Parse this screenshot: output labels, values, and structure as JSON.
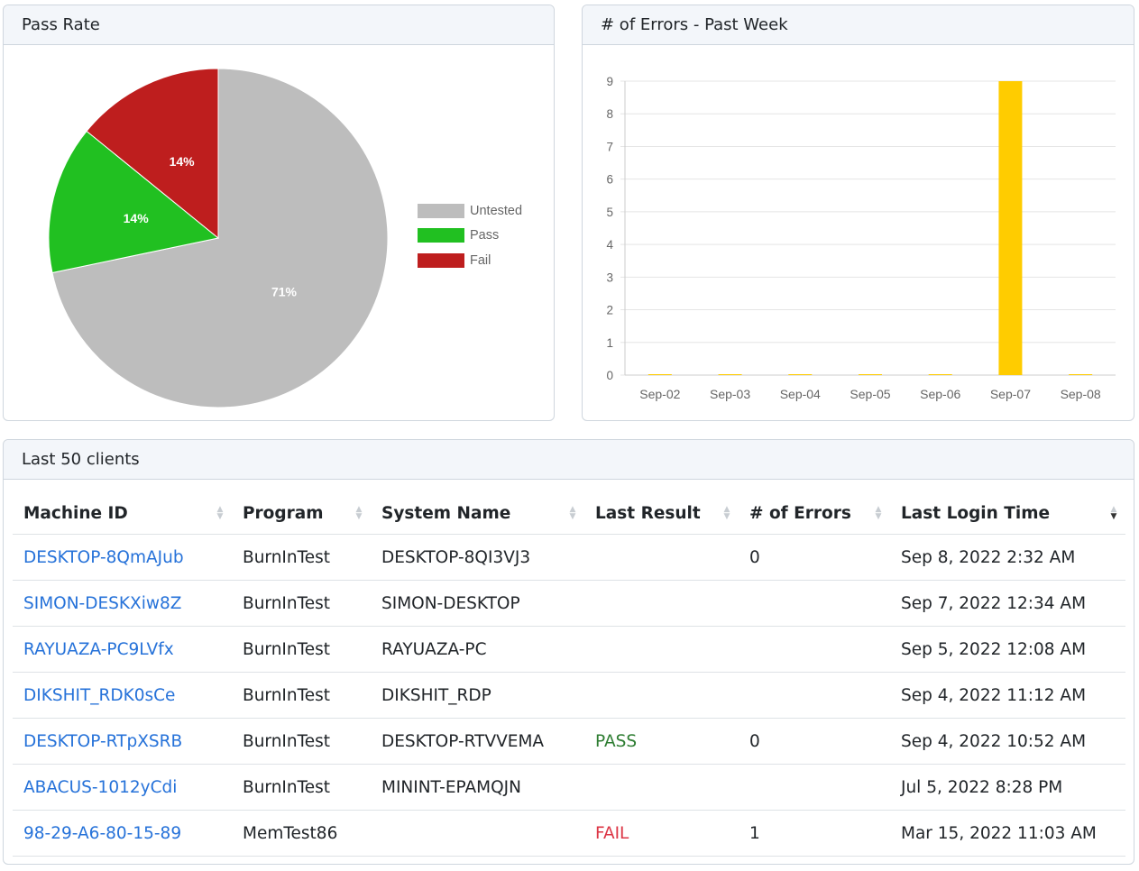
{
  "pass_rate": {
    "title": "Pass Rate",
    "legend": [
      {
        "label": "Untested",
        "color": "#bdbdbd"
      },
      {
        "label": "Pass",
        "color": "#21c021"
      },
      {
        "label": "Fail",
        "color": "#be1e1e"
      }
    ]
  },
  "errors": {
    "title": "# of Errors - Past Week"
  },
  "chart_data": [
    {
      "type": "pie",
      "title": "Pass Rate",
      "slices": [
        {
          "label": "Untested",
          "value": 71,
          "display": "71%",
          "color": "#bdbdbd"
        },
        {
          "label": "Pass",
          "value": 14,
          "display": "14%",
          "color": "#21c021"
        },
        {
          "label": "Fail",
          "value": 14,
          "display": "14%",
          "color": "#be1e1e"
        }
      ],
      "legend_position": "right"
    },
    {
      "type": "bar",
      "title": "# of Errors - Past Week",
      "categories": [
        "Sep-02",
        "Sep-03",
        "Sep-04",
        "Sep-05",
        "Sep-06",
        "Sep-07",
        "Sep-08"
      ],
      "values": [
        0,
        0,
        0,
        0,
        0,
        9,
        0
      ],
      "ylim": [
        0,
        9
      ],
      "yticks": [
        "0",
        "1",
        "2",
        "3",
        "4",
        "5",
        "6",
        "7",
        "8",
        "9"
      ],
      "bar_color": "#ffcc00",
      "grid": true
    }
  ],
  "clients": {
    "title": "Last 50 clients",
    "columns": [
      "Machine ID",
      "Program",
      "System Name",
      "Last Result",
      "# of Errors",
      "Last Login Time"
    ],
    "rows": [
      {
        "machine_id": "DESKTOP-8QmAJub",
        "program": "BurnInTest",
        "system_name": "DESKTOP-8QI3VJ3",
        "result": "",
        "errors": "0",
        "login": "Sep 8, 2022 2:32 AM"
      },
      {
        "machine_id": "SIMON-DESKXiw8Z",
        "program": "BurnInTest",
        "system_name": "SIMON-DESKTOP",
        "result": "",
        "errors": "",
        "login": "Sep 7, 2022 12:34 AM"
      },
      {
        "machine_id": "RAYUAZA-PC9LVfx",
        "program": "BurnInTest",
        "system_name": "RAYUAZA-PC",
        "result": "",
        "errors": "",
        "login": "Sep 5, 2022 12:08 AM"
      },
      {
        "machine_id": "DIKSHIT_RDK0sCe",
        "program": "BurnInTest",
        "system_name": "DIKSHIT_RDP",
        "result": "",
        "errors": "",
        "login": "Sep 4, 2022 11:12 AM"
      },
      {
        "machine_id": "DESKTOP-RTpXSRB",
        "program": "BurnInTest",
        "system_name": "DESKTOP-RTVVEMA",
        "result": "PASS",
        "errors": "0",
        "login": "Sep 4, 2022 10:52 AM"
      },
      {
        "machine_id": "ABACUS-1012yCdi",
        "program": "BurnInTest",
        "system_name": "MININT-EPAMQJN",
        "result": "",
        "errors": "",
        "login": "Jul 5, 2022 8:28 PM"
      },
      {
        "machine_id": "98-29-A6-80-15-89",
        "program": "MemTest86",
        "system_name": "",
        "result": "FAIL",
        "errors": "1",
        "login": "Mar 15, 2022 11:03 AM"
      }
    ]
  }
}
